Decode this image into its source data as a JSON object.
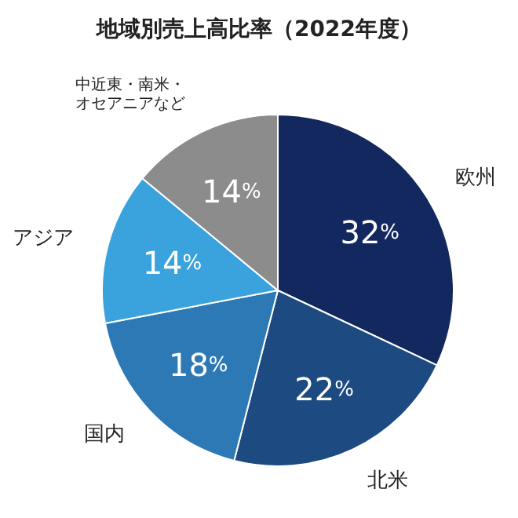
{
  "chart_data": {
    "type": "pie",
    "title": "地域別売上高比率（2022年度）",
    "categories": [
      "欧州",
      "北米",
      "国内",
      "アジア",
      "中近東・南米・オセアニアなど"
    ],
    "values": [
      32,
      22,
      18,
      14,
      14
    ],
    "value_labels": [
      "32%",
      "22%",
      "18%",
      "14%",
      "14%"
    ],
    "colors": [
      "#13285e",
      "#1d4a80",
      "#2d79b5",
      "#3aa3dd",
      "#8c8c8c"
    ]
  }
}
